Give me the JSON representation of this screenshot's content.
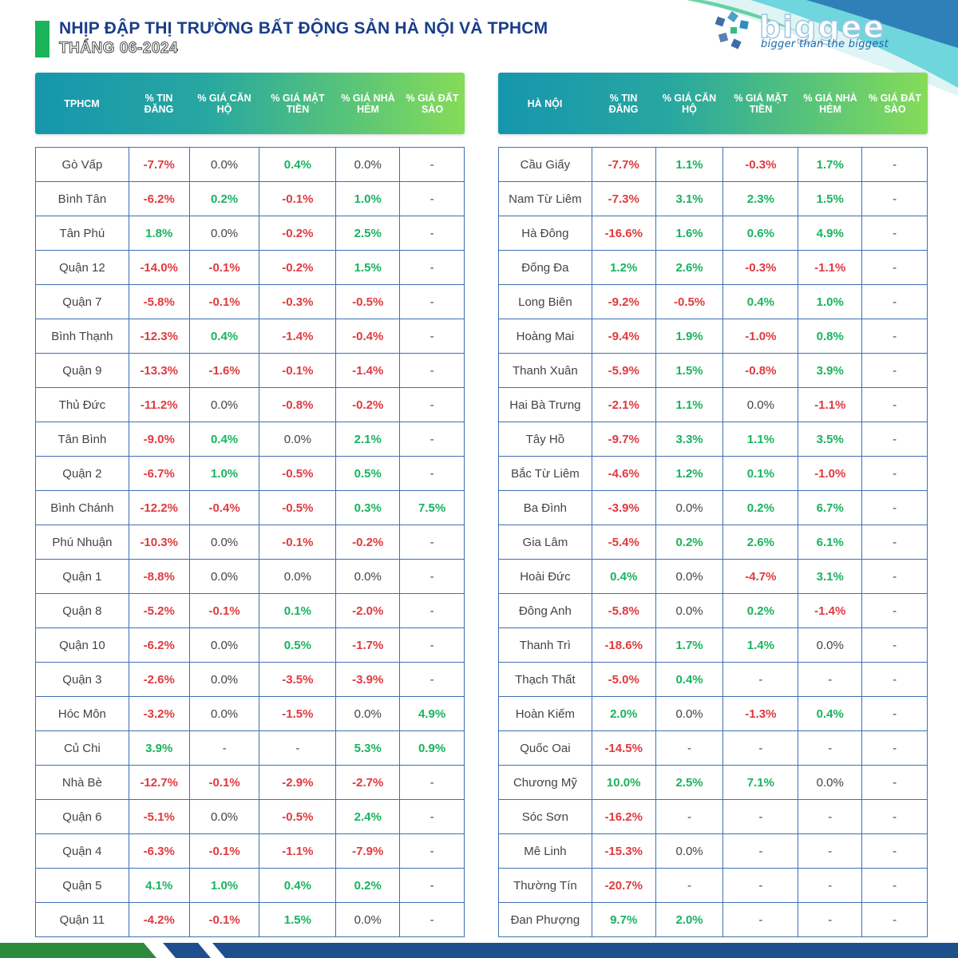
{
  "header": {
    "title": "NHỊP ĐẬP THỊ TRƯỜNG BẤT ĐỘNG SẢN HÀ NỘI VÀ TPHCM",
    "subtitle": "THÁNG 06-2024"
  },
  "logo": {
    "word": "biggee",
    "tagline": "bigger than the biggest"
  },
  "colors": {
    "negative": "#e03a3e",
    "positive": "#1ab35e",
    "title": "#1a3e8a",
    "grid": "#3f6fb3"
  },
  "tphcm": {
    "headers": [
      "TPHCM",
      "% TIN ĐĂNG",
      "% GIÁ CĂN HỘ",
      "% GIÁ MẶT TIỀN",
      "% GIÁ NHÀ HẺM",
      "% GIÁ ĐẤT SÀO"
    ],
    "rows": [
      [
        "Gò Vấp",
        "-7.7%",
        "0.0%",
        "0.4%",
        "0.0%",
        "-"
      ],
      [
        "Bình Tân",
        "-6.2%",
        "0.2%",
        "-0.1%",
        "1.0%",
        "-"
      ],
      [
        "Tân Phú",
        "1.8%",
        "0.0%",
        "-0.2%",
        "2.5%",
        "-"
      ],
      [
        "Quận 12",
        "-14.0%",
        "-0.1%",
        "-0.2%",
        "1.5%",
        "-"
      ],
      [
        "Quận 7",
        "-5.8%",
        "-0.1%",
        "-0.3%",
        "-0.5%",
        "-"
      ],
      [
        "Bình Thạnh",
        "-12.3%",
        "0.4%",
        "-1.4%",
        "-0.4%",
        "-"
      ],
      [
        "Quận 9",
        "-13.3%",
        "-1.6%",
        "-0.1%",
        "-1.4%",
        "-"
      ],
      [
        "Thủ Đức",
        "-11.2%",
        "0.0%",
        "-0.8%",
        "-0.2%",
        "-"
      ],
      [
        "Tân Bình",
        "-9.0%",
        "0.4%",
        "0.0%",
        "2.1%",
        "-"
      ],
      [
        "Quận 2",
        "-6.7%",
        "1.0%",
        "-0.5%",
        "0.5%",
        "-"
      ],
      [
        "Bình Chánh",
        "-12.2%",
        "-0.4%",
        "-0.5%",
        "0.3%",
        "7.5%"
      ],
      [
        "Phú Nhuận",
        "-10.3%",
        "0.0%",
        "-0.1%",
        "-0.2%",
        "-"
      ],
      [
        "Quận 1",
        "-8.8%",
        "0.0%",
        "0.0%",
        "0.0%",
        "-"
      ],
      [
        "Quận 8",
        "-5.2%",
        "-0.1%",
        "0.1%",
        "-2.0%",
        "-"
      ],
      [
        "Quận 10",
        "-6.2%",
        "0.0%",
        "0.5%",
        "-1.7%",
        "-"
      ],
      [
        "Quận 3",
        "-2.6%",
        "0.0%",
        "-3.5%",
        "-3.9%",
        "-"
      ],
      [
        "Hóc Môn",
        "-3.2%",
        "0.0%",
        "-1.5%",
        "0.0%",
        "4.9%"
      ],
      [
        "Củ Chi",
        "3.9%",
        "-",
        "-",
        "5.3%",
        "0.9%"
      ],
      [
        "Nhà Bè",
        "-12.7%",
        "-0.1%",
        "-2.9%",
        "-2.7%",
        "-"
      ],
      [
        "Quận 6",
        "-5.1%",
        "0.0%",
        "-0.5%",
        "2.4%",
        "-"
      ],
      [
        "Quận 4",
        "-6.3%",
        "-0.1%",
        "-1.1%",
        "-7.9%",
        "-"
      ],
      [
        "Quận 5",
        "4.1%",
        "1.0%",
        "0.4%",
        "0.2%",
        "-"
      ],
      [
        "Quận 11",
        "-4.2%",
        "-0.1%",
        "1.5%",
        "0.0%",
        "-"
      ]
    ]
  },
  "hanoi": {
    "headers": [
      "HÀ NỘI",
      "% TIN ĐĂNG",
      "% GIÁ CĂN HỘ",
      "% GIÁ MẶT TIỀN",
      "% GIÁ NHÀ HẺM",
      "% GIÁ ĐẤT SÀO"
    ],
    "rows": [
      [
        "Cầu Giấy",
        "-7.7%",
        "1.1%",
        "-0.3%",
        "1.7%",
        "-"
      ],
      [
        "Nam Từ Liêm",
        "-7.3%",
        "3.1%",
        "2.3%",
        "1.5%",
        "-"
      ],
      [
        "Hà Đông",
        "-16.6%",
        "1.6%",
        "0.6%",
        "4.9%",
        "-"
      ],
      [
        "Đống Đa",
        "1.2%",
        "2.6%",
        "-0.3%",
        "-1.1%",
        "-"
      ],
      [
        "Long Biên",
        "-9.2%",
        "-0.5%",
        "0.4%",
        "1.0%",
        "-"
      ],
      [
        "Hoàng Mai",
        "-9.4%",
        "1.9%",
        "-1.0%",
        "0.8%",
        "-"
      ],
      [
        "Thanh Xuân",
        "-5.9%",
        "1.5%",
        "-0.8%",
        "3.9%",
        "-"
      ],
      [
        "Hai Bà Trưng",
        "-2.1%",
        "1.1%",
        "0.0%",
        "-1.1%",
        "-"
      ],
      [
        "Tây Hồ",
        "-9.7%",
        "3.3%",
        "1.1%",
        "3.5%",
        "-"
      ],
      [
        "Bắc Từ Liêm",
        "-4.6%",
        "1.2%",
        "0.1%",
        "-1.0%",
        "-"
      ],
      [
        "Ba Đình",
        "-3.9%",
        "0.0%",
        "0.2%",
        "6.7%",
        "-"
      ],
      [
        "Gia Lâm",
        "-5.4%",
        "0.2%",
        "2.6%",
        "6.1%",
        "-"
      ],
      [
        "Hoài Đức",
        "0.4%",
        "0.0%",
        "-4.7%",
        "3.1%",
        "-"
      ],
      [
        "Đông Anh",
        "-5.8%",
        "0.0%",
        "0.2%",
        "-1.4%",
        "-"
      ],
      [
        "Thanh Trì",
        "-18.6%",
        "1.7%",
        "1.4%",
        "0.0%",
        "-"
      ],
      [
        "Thạch Thất",
        "-5.0%",
        "0.4%",
        "-",
        "-",
        "-"
      ],
      [
        "Hoàn Kiếm",
        "2.0%",
        "0.0%",
        "-1.3%",
        "0.4%",
        "-"
      ],
      [
        "Quốc Oai",
        "-14.5%",
        "-",
        "-",
        "-",
        "-"
      ],
      [
        "Chương Mỹ",
        "10.0%",
        "2.5%",
        "7.1%",
        "0.0%",
        "-"
      ],
      [
        "Sóc Sơn",
        "-16.2%",
        "-",
        "-",
        "-",
        "-"
      ],
      [
        "Mê Linh",
        "-15.3%",
        "0.0%",
        "-",
        "-",
        "-"
      ],
      [
        "Thường Tín",
        "-20.7%",
        "-",
        "-",
        "-",
        "-"
      ],
      [
        "Đan Phượng",
        "9.7%",
        "2.0%",
        "-",
        "-",
        "-"
      ]
    ]
  }
}
